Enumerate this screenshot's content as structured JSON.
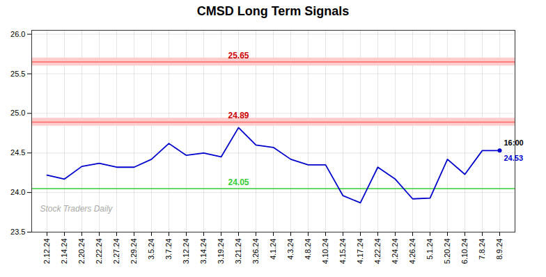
{
  "chart_data": {
    "type": "line",
    "title": "CMSD Long Term Signals",
    "categories": [
      "2.12.24",
      "2.14.24",
      "2.20.24",
      "2.22.24",
      "2.27.24",
      "2.29.24",
      "3.5.24",
      "3.7.24",
      "3.12.24",
      "3.14.24",
      "3.19.24",
      "3.21.24",
      "3.26.24",
      "4.1.24",
      "4.3.24",
      "4.8.24",
      "4.10.24",
      "4.15.24",
      "4.17.24",
      "4.22.24",
      "4.24.24",
      "4.26.24",
      "5.1.24",
      "5.20.24",
      "6.10.24",
      "7.8.24",
      "8.9.24"
    ],
    "values": [
      24.22,
      24.17,
      24.33,
      24.37,
      24.32,
      24.32,
      24.42,
      24.62,
      24.47,
      24.5,
      24.45,
      24.82,
      24.6,
      24.57,
      24.42,
      24.35,
      24.35,
      23.96,
      23.87,
      24.32,
      24.17,
      23.92,
      23.93,
      24.42,
      24.23,
      24.53,
      24.53
    ],
    "color": "#0000cc",
    "hlines": [
      {
        "value": 24.05,
        "label": "24.05",
        "color": "#33cc33",
        "label_color": "#33cc33"
      },
      {
        "value": 24.89,
        "label": "24.89",
        "color": "#ff6666",
        "label_color": "#cc0000",
        "band": [
          24.84,
          24.94
        ],
        "band_color": "#ffcccc"
      },
      {
        "value": 25.65,
        "label": "25.65",
        "color": "#ff6666",
        "label_color": "#cc0000",
        "band": [
          25.6,
          25.7
        ],
        "band_color": "#ffcccc"
      }
    ],
    "end_annotations": [
      {
        "text": "16:00",
        "color": "#000000"
      },
      {
        "text": "24.53",
        "color": "#0000cc"
      }
    ],
    "watermark": {
      "text": "Stock Traders Daily",
      "color": "#aaaaaa"
    },
    "ylim": [
      23.5,
      26.05
    ],
    "yticks": [
      23.5,
      {
        "value": 24.0,
        "label": "24.0"
      },
      24.5,
      {
        "value": 25.0,
        "label": "25.0"
      },
      25.5,
      {
        "value": 26.0,
        "label": "26.0"
      }
    ],
    "grid": true
  }
}
